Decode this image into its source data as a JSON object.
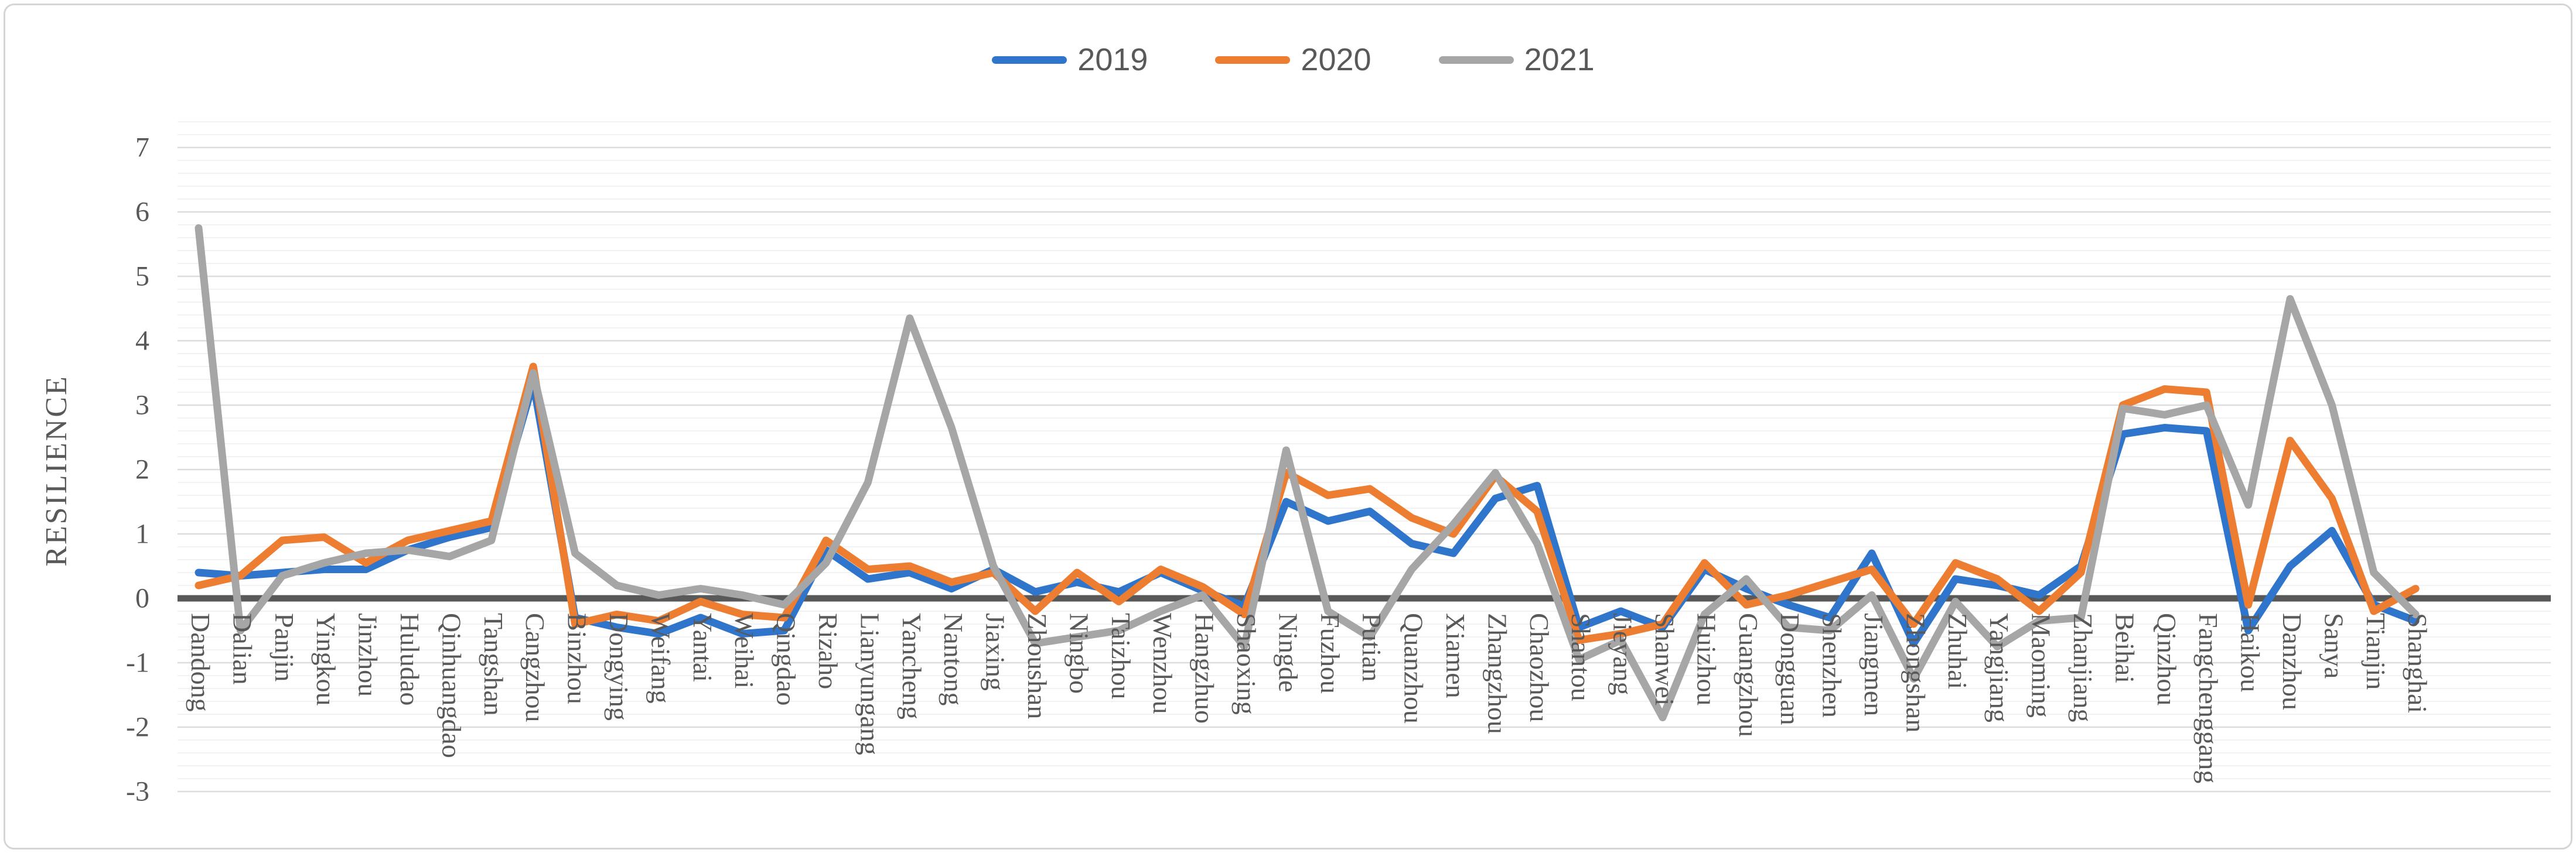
{
  "legend": {
    "items": [
      {
        "label": "2019",
        "color": "#2E75CB"
      },
      {
        "label": "2020",
        "color": "#ED7D31"
      },
      {
        "label": "2021",
        "color": "#A6A6A6"
      }
    ]
  },
  "chart_data": {
    "type": "line",
    "title": "",
    "xlabel": "",
    "ylabel": "RESILIENCE",
    "ylim": [
      -3,
      7
    ],
    "ytick_step": 1,
    "minor_gridline_step": 0.2,
    "grid": "horizontal major and minor gridlines",
    "legend_position": "top-center",
    "zero_axis_color": "#595959",
    "major_gridline_color": "#DCDCDC",
    "minor_gridline_color": "#F2F2F2",
    "yticks": [
      7,
      6,
      5,
      4,
      3,
      2,
      1,
      0,
      -1,
      -2,
      -3
    ],
    "categories": [
      "Dandong",
      "Dalian",
      "Panjin",
      "Yingkou",
      "Jinzhou",
      "Huludao",
      "Qinhuangdao",
      "Tangshan",
      "Cangzhou",
      "Binzhou",
      "Dongying",
      "Weifang",
      "Yantai",
      "Weihai",
      "Qingdao",
      "Rizaho",
      "Lianyungang",
      "Yancheng",
      "Nantong",
      "Jiaxing",
      "Zhoushan",
      "Ningbo",
      "Taizhou",
      "Wenzhou",
      "Hangzhuo",
      "Shaoxing",
      "Ningde",
      "Fuzhou",
      "Putian",
      "Quanzhou",
      "Xiamen",
      "Zhangzhou",
      "Chaozhou",
      "Shantou",
      "Jieyang",
      "Shanwei",
      "Huizhou",
      "Guangzhou",
      "Dongguan",
      "Shenzhen",
      "Jiangmen",
      "Zhongshan",
      "Zhuhai",
      "Yangjiang",
      "Maoming",
      "Zhanjiang",
      "Beihai",
      "Qinzhou",
      "Fangchenggang",
      "Haikou",
      "Danzhou",
      "Sanya",
      "Tianjin",
      "Shanghai"
    ],
    "series": [
      {
        "name": "2019",
        "color": "#2E75CB",
        "values": [
          0.4,
          0.35,
          0.4,
          0.45,
          0.45,
          0.75,
          0.95,
          1.1,
          3.35,
          -0.3,
          -0.45,
          -0.55,
          -0.3,
          -0.55,
          -0.5,
          0.75,
          0.3,
          0.4,
          0.15,
          0.45,
          0.1,
          0.25,
          0.1,
          0.4,
          0.12,
          -0.12,
          1.5,
          1.2,
          1.35,
          0.85,
          0.7,
          1.55,
          1.75,
          -0.45,
          -0.2,
          -0.45,
          0.45,
          0.15,
          -0.1,
          -0.3,
          0.7,
          -0.7,
          0.3,
          0.2,
          0.05,
          0.5,
          2.55,
          2.65,
          2.6,
          -0.5,
          0.5,
          1.05,
          -0.1,
          -0.35
        ]
      },
      {
        "name": "2020",
        "color": "#ED7D31",
        "values": [
          0.2,
          0.35,
          0.9,
          0.95,
          0.55,
          0.9,
          1.05,
          1.2,
          3.6,
          -0.4,
          -0.25,
          -0.35,
          -0.05,
          -0.25,
          -0.3,
          0.9,
          0.45,
          0.5,
          0.25,
          0.4,
          -0.2,
          0.4,
          -0.05,
          0.45,
          0.18,
          -0.25,
          1.95,
          1.6,
          1.7,
          1.25,
          1.0,
          1.9,
          1.35,
          -0.65,
          -0.55,
          -0.4,
          0.55,
          -0.1,
          0.05,
          0.25,
          0.45,
          -0.4,
          0.55,
          0.3,
          -0.2,
          0.4,
          3.0,
          3.25,
          3.2,
          -0.1,
          2.45,
          1.55,
          -0.2,
          0.15
        ]
      },
      {
        "name": "2021",
        "color": "#A6A6A6",
        "values": [
          5.75,
          -0.5,
          0.35,
          0.55,
          0.7,
          0.75,
          0.65,
          0.9,
          3.5,
          0.7,
          0.2,
          0.05,
          0.15,
          0.05,
          -0.1,
          0.55,
          1.8,
          4.35,
          2.65,
          0.5,
          -0.7,
          -0.6,
          -0.5,
          -0.2,
          0.05,
          -0.75,
          2.3,
          -0.2,
          -0.6,
          0.45,
          1.15,
          1.95,
          0.85,
          -0.95,
          -0.65,
          -1.85,
          -0.25,
          0.3,
          -0.45,
          -0.5,
          0.05,
          -1.25,
          -0.05,
          -0.75,
          -0.35,
          -0.3,
          2.95,
          2.85,
          3.0,
          1.45,
          4.65,
          3.0,
          0.4,
          -0.25
        ]
      }
    ]
  }
}
